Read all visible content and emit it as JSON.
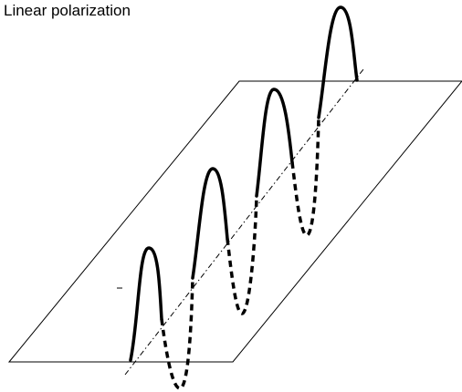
{
  "title": "Linear polarization",
  "colors": {
    "ink": "#000000",
    "background": "#ffffff"
  }
}
